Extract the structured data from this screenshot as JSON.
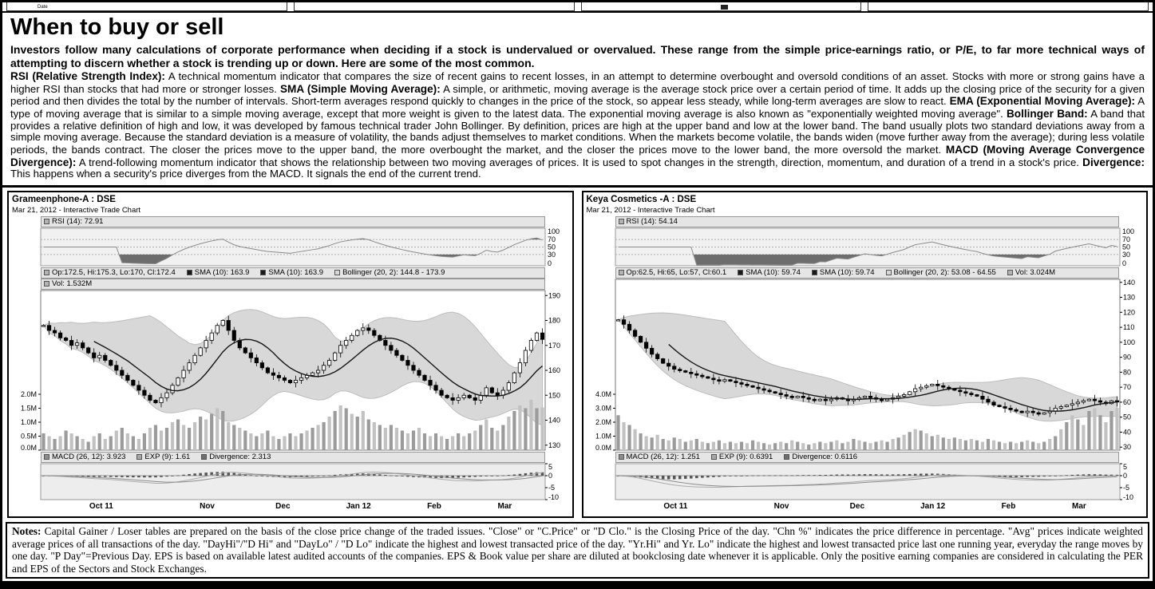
{
  "top_strip": {
    "date_label": "Date"
  },
  "article": {
    "heading": "When to buy or sell",
    "intro": "Investors follow many calculations of corporate performance when deciding if a stock is undervalued or overvalued.  These range from the simple price-earnings ratio, or P/E, to far more technical ways of attempting to discern whether a stock is trending up or down. Here are some of the most common.",
    "body": [
      {
        "b": "RSI (Relative Strength Index):"
      },
      {
        "t": " A technical momentum indicator that compares the size of recent gains to recent losses, in an attempt to determine overbought and oversold conditions of an asset. Stocks with more or strong gains have a higher RSI than stocks that had more or stronger losses. "
      },
      {
        "b": "SMA (Simple Moving Average):"
      },
      {
        "t": " A simple, or arithmetic, moving average is the average stock price over a certain period of time. It adds up the closing price of the security for a given period and then divides the total by the number of intervals. Short-term averages respond quickly to changes in the price of the stock, so appear less steady, while long-term averages are slow to react. "
      },
      {
        "b": "EMA (Exponential Moving Average):"
      },
      {
        "t": " A type of moving average that is similar to a simple moving average, except that more weight is given to the latest data. The exponential moving average is also known as \"exponentially weighted moving average\". "
      },
      {
        "b": "Bollinger Band:"
      },
      {
        "t": " A band that provides a relative definition of high and low, it was developed by famous technical trader John Bollinger. By definition, prices are high at the upper band and low at the lower band. The band usually plots two standard deviations away from a simple moving average. Because the standard deviation is a measure of volatility, the bands adjust themselves to market conditions. When the markets become volatile, the bands widen (move further away from the average); during less volatile periods, the bands contract. The closer the prices move to the upper band, the more overbought the market, and the closer the prices move to the lower band, the more oversold the market. "
      },
      {
        "b": "MACD (Moving Average Convergence Divergence):"
      },
      {
        "t": " A trend-following momentum indicator that shows the relationship between two moving averages of prices. It is used to spot changes in the strength, direction, momentum, and duration of a trend in a stock's price. "
      },
      {
        "b": "Divergence:"
      },
      {
        "t": " This happens when a security's price diverges from the MACD. It signals the end of the current trend."
      }
    ]
  },
  "notes": {
    "segments": [
      {
        "b": "Notes:"
      },
      {
        "t": " Capital Gainer / Loser tables are prepared on the basis of the close price change of the traded issues. \"Close\" or \"C.Price\" or \"D Clo.\" is the Closing Price of the day. \"Chn %\" indicates the price difference in percentage. \"Avg\" prices indicate weighted average prices of all transactions of the day.  \"DayHi\"/\"D Hi\" and \"DayLo\" / \"D Lo\" indicate the highest and lowest transacted price of the day.  \"Yr.Hi\" and Yr. Lo\" indicate the highest and lowest transacted price last one running year, everyday the range moves by one day. \"P Day\"=Previous Day. EPS is based on available latest audited accounts of the companies. EPS & Book value per share are diluted at bookclosing date whenever it is applicable. Only the positive earning companies are considered in calculating the PER and EPS of the Sectors and Stock Exchanges."
      }
    ]
  },
  "chart_data": [
    {
      "type": "candlestick",
      "title": "Grameenphone-A : DSE",
      "subtitle": "Mar 21, 2012 - Interactive Trade Chart",
      "rsi_legend": {
        "swatch": "#b4b4b4",
        "label": "RSI (14): 72.91"
      },
      "legend_rows": [
        [
          {
            "swatch": "#b4b4b4",
            "label": "Op:172.5, Hi:175.3, Lo:170, Cl:172.4"
          },
          {
            "swatch": "#1a1a1a",
            "label": "SMA (10): 163.9"
          },
          {
            "swatch": "#1a1a1a",
            "label": "SMA (10): 163.9"
          },
          {
            "swatch": "#d8d8d8",
            "label": "Bollinger (20, 2): 144.8 - 173.9"
          }
        ],
        [
          {
            "swatch": "#b4b4b4",
            "label": "Vol: 1.532M"
          }
        ]
      ],
      "macd_legend": [
        {
          "swatch": "#8c8c8c",
          "label": "MACD (26, 12): 3.923"
        },
        {
          "swatch": "#a8a8a8",
          "label": "EXP (9): 1.61"
        },
        {
          "swatch": "#6e6e6e",
          "label": "Divergence: 2.313"
        }
      ],
      "rsi_ticks": [
        100,
        70,
        50,
        30,
        0
      ],
      "price_ticks": [
        190,
        180,
        170,
        160,
        150,
        140,
        130
      ],
      "price_domain": [
        128,
        192
      ],
      "vol_ticks": {
        "labels": [
          "2.0M",
          "1.5M",
          "1.0M",
          "0.5M",
          "0.0M"
        ],
        "values": [
          2,
          1.5,
          1,
          0.5,
          0
        ],
        "max": 2
      },
      "macd_ticks": [
        5,
        0,
        -5,
        -10
      ],
      "macd_domain": [
        -10,
        5
      ],
      "macd_scale": 0.45,
      "x_labels": [
        {
          "label": "Oct 11",
          "pos": 0.12
        },
        {
          "label": "Nov",
          "pos": 0.33
        },
        {
          "label": "Dec",
          "pos": 0.48
        },
        {
          "label": "Jan 12",
          "pos": 0.63
        },
        {
          "label": "Feb",
          "pos": 0.78
        },
        {
          "label": "Mar",
          "pos": 0.92
        }
      ],
      "closes": [
        178,
        176,
        175,
        173,
        172,
        170,
        171,
        169,
        167,
        165,
        166,
        164,
        162,
        160,
        158,
        156,
        154,
        152,
        150,
        148,
        147,
        149,
        151,
        154,
        157,
        160,
        163,
        166,
        169,
        172,
        175,
        178,
        180,
        176,
        172,
        169,
        167,
        165,
        163,
        161,
        159,
        158,
        157,
        156,
        155,
        156,
        157,
        158,
        159,
        160,
        162,
        164,
        167,
        170,
        172,
        174,
        176,
        177,
        176,
        174,
        172,
        170,
        168,
        166,
        164,
        162,
        160,
        158,
        156,
        154,
        152,
        150,
        149,
        148,
        149,
        150,
        149,
        148,
        150,
        153,
        151,
        150,
        152,
        155,
        159,
        163,
        168,
        172,
        175,
        172.4
      ],
      "volumes_m": [
        0.6,
        0.5,
        0.4,
        0.5,
        0.7,
        0.6,
        0.5,
        0.4,
        0.3,
        0.5,
        0.6,
        0.4,
        0.5,
        0.7,
        0.8,
        0.6,
        0.5,
        0.4,
        0.6,
        0.8,
        0.9,
        0.7,
        0.8,
        1.0,
        1.1,
        0.9,
        0.8,
        1.0,
        1.2,
        1.1,
        1.3,
        1.5,
        1.4,
        1.0,
        0.9,
        0.8,
        0.7,
        0.6,
        0.5,
        0.6,
        0.7,
        0.5,
        0.4,
        0.5,
        0.6,
        0.5,
        0.6,
        0.7,
        0.8,
        0.9,
        1.0,
        1.2,
        1.4,
        1.6,
        1.5,
        1.3,
        1.2,
        1.4,
        1.1,
        1.0,
        0.9,
        0.8,
        0.9,
        0.8,
        0.7,
        0.6,
        0.7,
        0.8,
        0.6,
        0.5,
        0.6,
        0.5,
        0.4,
        0.5,
        0.6,
        0.5,
        0.6,
        0.7,
        0.9,
        1.1,
        0.8,
        0.7,
        0.9,
        1.2,
        1.4,
        1.6,
        1.5,
        1.8,
        1.5,
        1.53
      ]
    },
    {
      "type": "candlestick",
      "title": "Keya Cosmetics -A : DSE",
      "subtitle": "Mar 21, 2012 - Interactive Trade Chart",
      "rsi_legend": {
        "swatch": "#b4b4b4",
        "label": "RSI (14): 54.14"
      },
      "legend_rows": [
        [
          {
            "swatch": "#b4b4b4",
            "label": "Op:62.5, Hi:65, Lo:57, Cl:60.1"
          },
          {
            "swatch": "#1a1a1a",
            "label": "SMA (10): 59.74"
          },
          {
            "swatch": "#1a1a1a",
            "label": "SMA (10): 59.74"
          },
          {
            "swatch": "#d8d8d8",
            "label": "Bollinger (20, 2): 53.08 - 64.55"
          },
          {
            "swatch": "#b4b4b4",
            "label": "Vol: 3.024M"
          }
        ]
      ],
      "macd_legend": [
        {
          "swatch": "#8c8c8c",
          "label": "MACD (26, 12): 1.251"
        },
        {
          "swatch": "#a8a8a8",
          "label": "EXP (9): 0.6391"
        },
        {
          "swatch": "#6e6e6e",
          "label": "Divergence: 0.6116"
        }
      ],
      "rsi_ticks": [
        100,
        70,
        50,
        30,
        0
      ],
      "price_ticks": [
        140,
        130,
        120,
        110,
        100,
        90,
        80,
        70,
        60,
        50,
        40,
        30
      ],
      "price_domain": [
        28,
        142
      ],
      "vol_ticks": {
        "labels": [
          "4.0M",
          "3.0M",
          "2.0M",
          "1.0M",
          "0.0M"
        ],
        "values": [
          4,
          3,
          2,
          1,
          0
        ],
        "max": 4
      },
      "macd_ticks": [
        5,
        0,
        -5,
        -10
      ],
      "macd_domain": [
        -10,
        5
      ],
      "macd_scale": 0.5,
      "x_labels": [
        {
          "label": "Oct 11",
          "pos": 0.12
        },
        {
          "label": "Nov",
          "pos": 0.33
        },
        {
          "label": "Dec",
          "pos": 0.48
        },
        {
          "label": "Jan 12",
          "pos": 0.63
        },
        {
          "label": "Feb",
          "pos": 0.78
        },
        {
          "label": "Mar",
          "pos": 0.92
        }
      ],
      "closes": [
        115,
        112,
        108,
        104,
        100,
        96,
        92,
        89,
        86,
        84,
        82,
        81,
        80,
        79,
        78,
        77,
        76,
        75,
        74,
        75,
        74,
        73,
        72,
        71,
        70,
        69,
        68,
        67,
        66,
        65,
        64,
        63,
        64,
        63,
        62,
        61,
        62,
        61,
        62,
        63,
        62,
        61,
        62,
        63,
        64,
        63,
        62,
        61,
        62,
        63,
        64,
        65,
        67,
        69,
        70,
        71,
        72,
        71,
        70,
        69,
        68,
        67,
        66,
        65,
        64,
        62,
        60,
        58,
        57,
        56,
        55,
        54,
        53,
        54,
        53,
        52,
        53,
        54,
        56,
        57,
        58,
        59,
        60,
        61,
        62,
        61,
        60,
        59,
        61,
        60.1
      ],
      "volumes_m": [
        2.5,
        2.0,
        1.8,
        1.5,
        1.2,
        1.0,
        0.9,
        1.1,
        0.8,
        0.7,
        0.9,
        0.8,
        0.6,
        0.7,
        0.8,
        0.6,
        0.5,
        0.6,
        0.7,
        0.5,
        0.6,
        0.5,
        0.6,
        0.5,
        0.7,
        0.6,
        0.5,
        0.4,
        0.5,
        0.6,
        0.5,
        0.7,
        0.6,
        0.5,
        0.4,
        0.5,
        0.6,
        0.5,
        0.6,
        0.7,
        0.5,
        0.6,
        0.8,
        0.7,
        0.6,
        0.5,
        0.6,
        0.7,
        0.6,
        0.8,
        0.9,
        1.1,
        1.3,
        1.5,
        1.4,
        1.2,
        1.0,
        1.1,
        0.9,
        0.8,
        0.9,
        0.8,
        0.7,
        0.8,
        0.7,
        0.6,
        0.8,
        0.7,
        0.6,
        0.5,
        0.6,
        0.5,
        0.6,
        0.7,
        0.6,
        0.5,
        0.6,
        0.8,
        1.0,
        1.5,
        2.0,
        2.5,
        2.2,
        1.8,
        2.8,
        3.0,
        2.5,
        2.0,
        2.8,
        3.02
      ]
    }
  ]
}
